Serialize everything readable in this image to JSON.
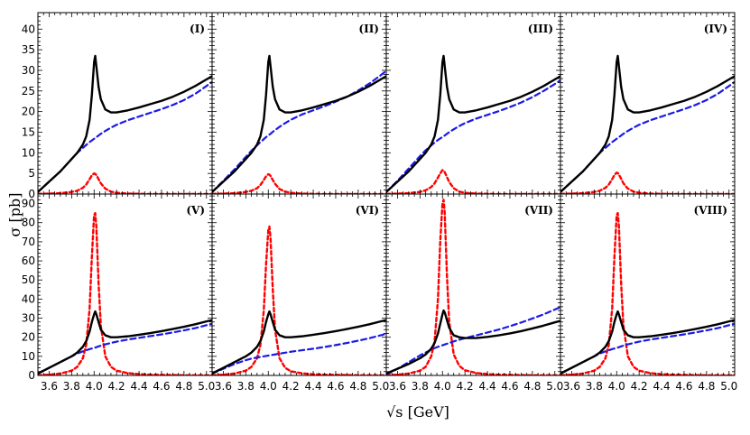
{
  "figure": {
    "ylabel": "σ   [pb]",
    "xlabel": "√s   [GeV]"
  },
  "chart_data": {
    "type": "line",
    "layout": "2 rows x 4 columns, shared axes",
    "x_range": [
      3.5,
      5.05
    ],
    "x_ticks": [
      3.6,
      3.8,
      4.0,
      4.2,
      4.4,
      4.6,
      4.8,
      5.0
    ],
    "x_tick_labels": [
      "3.6",
      "3.8",
      "4.0",
      "4.2",
      "4.4",
      "4.6",
      "4.8",
      "5.0"
    ],
    "rows": [
      {
        "ylim": [
          0,
          44
        ],
        "y_ticks": [
          0,
          5,
          10,
          15,
          20,
          25,
          30,
          35,
          40
        ],
        "y_tick_labels": [
          "0",
          "5",
          "10",
          "15",
          "20",
          "25",
          "30",
          "35",
          "40"
        ]
      },
      {
        "ylim": [
          0,
          95
        ],
        "y_ticks": [
          0,
          10,
          20,
          30,
          40,
          50,
          60,
          70,
          80,
          90
        ],
        "y_tick_labels": [
          "0",
          "10",
          "20",
          "30",
          "40",
          "50",
          "60",
          "70",
          "80",
          "90"
        ]
      }
    ],
    "x": [
      3.5,
      3.6,
      3.7,
      3.8,
      3.85,
      3.9,
      3.93,
      3.96,
      3.98,
      4.0,
      4.01,
      4.02,
      4.04,
      4.06,
      4.1,
      4.15,
      4.2,
      4.3,
      4.4,
      4.5,
      4.6,
      4.7,
      4.8,
      4.9,
      5.0,
      5.05
    ],
    "series_styles": {
      "total": {
        "color": "#000000",
        "dash": "none",
        "width": 2.4
      },
      "background": {
        "color": "#1a1ae6",
        "dash": "6,4",
        "width": 2.2
      },
      "resonance": {
        "color": "#ff0000",
        "dash": "4,3",
        "width": 2.4
      }
    },
    "panels": [
      {
        "label": "(I)",
        "row": 0,
        "series": [
          {
            "style": "total",
            "values": [
              0.5,
              3,
              5.5,
              8.5,
              10,
              12,
              14,
              18,
              24,
              32,
              33.5,
              31,
              26,
              23,
              20.5,
              19.8,
              19.8,
              20.3,
              21,
              21.8,
              22.6,
              23.6,
              24.8,
              26.2,
              27.8,
              28.6
            ]
          },
          {
            "style": "background",
            "values": [
              0.5,
              3,
              5.5,
              8.5,
              10,
              11.2,
              11.9,
              12.6,
              13,
              13.4,
              13.6,
              13.8,
              14.2,
              14.6,
              15.3,
              16.1,
              16.8,
              17.9,
              18.8,
              19.7,
              20.6,
              21.6,
              22.8,
              24.3,
              26.2,
              27.2
            ]
          },
          {
            "style": "resonance",
            "values": [
              0.05,
              0.1,
              0.2,
              0.5,
              0.8,
              1.5,
              2.3,
              3.6,
              4.5,
              5,
              4.9,
              4.6,
              3.6,
              2.6,
              1.3,
              0.6,
              0.3,
              0.1,
              0.05,
              0,
              0,
              0,
              0,
              0,
              0,
              0
            ]
          }
        ]
      },
      {
        "label": "(II)",
        "row": 0,
        "series": [
          {
            "style": "total",
            "values": [
              0.5,
              3,
              5.5,
              8.5,
              10,
              12,
              14,
              18,
              24,
              32,
              33.5,
              31,
              26,
              23,
              20.5,
              19.8,
              19.8,
              20.3,
              21,
              21.8,
              22.6,
              23.6,
              24.8,
              26.2,
              27.8,
              28.6
            ]
          },
          {
            "style": "background",
            "values": [
              0.5,
              3.2,
              6,
              9,
              10.5,
              11.8,
              12.6,
              13.3,
              13.8,
              14.2,
              14.4,
              14.6,
              15.1,
              15.5,
              16.3,
              17.2,
              18,
              19.3,
              20.3,
              21.3,
              22.4,
              23.6,
              25.1,
              26.8,
              28.8,
              29.9
            ]
          },
          {
            "style": "resonance",
            "values": [
              0.05,
              0.1,
              0.2,
              0.5,
              0.8,
              1.4,
              2.2,
              3.4,
              4.3,
              4.8,
              4.7,
              4.4,
              3.4,
              2.5,
              1.2,
              0.6,
              0.3,
              0.1,
              0.05,
              0,
              0,
              0,
              0,
              0,
              0,
              0
            ]
          }
        ]
      },
      {
        "label": "(III)",
        "row": 0,
        "series": [
          {
            "style": "total",
            "values": [
              0.5,
              3,
              5.5,
              8.5,
              10,
              12,
              14,
              18,
              24,
              32,
              33.5,
              31,
              26,
              23,
              20.5,
              19.8,
              19.8,
              20.3,
              21,
              21.8,
              22.6,
              23.6,
              24.8,
              26.2,
              27.8,
              28.6
            ]
          },
          {
            "style": "background",
            "values": [
              0.5,
              3.2,
              6.2,
              9.2,
              10.6,
              11.8,
              12.5,
              13.1,
              13.5,
              13.8,
              14,
              14.2,
              14.6,
              15,
              15.7,
              16.5,
              17.2,
              18.3,
              19.2,
              20.1,
              21.1,
              22.2,
              23.5,
              25,
              26.7,
              27.6
            ]
          },
          {
            "style": "resonance",
            "values": [
              0.05,
              0.1,
              0.2,
              0.5,
              0.9,
              1.7,
              2.6,
              4,
              5,
              5.8,
              5.7,
              5.3,
              4.1,
              2.9,
              1.4,
              0.6,
              0.3,
              0.1,
              0.05,
              0,
              0,
              0,
              0,
              0,
              0,
              0
            ]
          }
        ]
      },
      {
        "label": "(IV)",
        "row": 0,
        "series": [
          {
            "style": "total",
            "values": [
              0.5,
              3,
              5.5,
              8.5,
              10,
              12,
              14,
              18,
              24,
              32,
              33.5,
              31,
              26,
              23,
              20.5,
              19.8,
              19.8,
              20.3,
              21,
              21.8,
              22.6,
              23.6,
              24.8,
              26.2,
              27.8,
              28.6
            ]
          },
          {
            "style": "background",
            "values": [
              0.5,
              3,
              5.5,
              8.5,
              10,
              11.2,
              11.9,
              12.6,
              13,
              13.4,
              13.6,
              13.8,
              14.2,
              14.6,
              15.3,
              16.1,
              16.8,
              17.9,
              18.8,
              19.7,
              20.6,
              21.6,
              22.8,
              24.3,
              26.2,
              27.2
            ]
          },
          {
            "style": "resonance",
            "values": [
              0.05,
              0.1,
              0.2,
              0.5,
              0.8,
              1.5,
              2.3,
              3.6,
              4.6,
              5.2,
              5.1,
              4.7,
              3.7,
              2.6,
              1.3,
              0.6,
              0.3,
              0.1,
              0.05,
              0,
              0,
              0,
              0,
              0,
              0,
              0
            ]
          }
        ]
      },
      {
        "label": "(V)",
        "row": 1,
        "series": [
          {
            "style": "total",
            "values": [
              1,
              4,
              7,
              10,
              12,
              15,
              18,
              23,
              28,
              32,
              33.5,
              32,
              28,
              24,
              21,
              20,
              20,
              20.5,
              21.3,
              22.2,
              23.2,
              24.3,
              25.5,
              26.8,
              28.3,
              29
            ]
          },
          {
            "style": "background",
            "values": [
              1,
              4,
              7,
              10,
              11.5,
              12.6,
              13.2,
              13.8,
              14.1,
              14.4,
              14.6,
              14.8,
              15.2,
              15.6,
              16.3,
              17,
              17.7,
              18.8,
              19.7,
              20.6,
              21.5,
              22.5,
              23.6,
              24.8,
              26.3,
              27.1
            ]
          },
          {
            "style": "resonance",
            "values": [
              0.1,
              0.4,
              1,
              2.5,
              4.5,
              9,
              16,
              35,
              62,
              84,
              85,
              78,
              48,
              26,
              10,
              4.5,
              2.5,
              1.2,
              0.7,
              0.4,
              0.3,
              0.2,
              0.1,
              0.1,
              0.1,
              0.1
            ]
          }
        ]
      },
      {
        "label": "(VI)",
        "row": 1,
        "series": [
          {
            "style": "total",
            "values": [
              1,
              4,
              7,
              10,
              12,
              15,
              18,
              23,
              28,
              32,
              33.5,
              32,
              28,
              24,
              21,
              20,
              20,
              20.5,
              21.3,
              22.2,
              23.2,
              24.3,
              25.5,
              26.8,
              28.3,
              29
            ]
          },
          {
            "style": "background",
            "values": [
              1,
              3.5,
              6,
              8,
              8.8,
              9.4,
              9.7,
              10,
              10.2,
              10.4,
              10.5,
              10.6,
              10.8,
              11,
              11.4,
              11.9,
              12.4,
              13.2,
              14,
              14.9,
              15.9,
              17,
              18.2,
              19.5,
              21,
              21.8
            ]
          },
          {
            "style": "resonance",
            "values": [
              0.1,
              0.4,
              1,
              2.5,
              4.5,
              9,
              16,
              34,
              58,
              76,
              78,
              72,
              45,
              24,
              9,
              4,
              2.2,
              1.1,
              0.6,
              0.4,
              0.3,
              0.2,
              0.1,
              0.1,
              0.1,
              0.1
            ]
          }
        ]
      },
      {
        "label": "(VII)",
        "row": 1,
        "series": [
          {
            "style": "total",
            "values": [
              1,
              3.5,
              6,
              9,
              11,
              14,
              17,
              22,
              27,
              32,
              34,
              33,
              29,
              25,
              21,
              20,
              19.6,
              19.6,
              20.2,
              21,
              22,
              23.2,
              24.6,
              26.1,
              27.8,
              28.6
            ]
          },
          {
            "style": "background",
            "values": [
              0.5,
              3.5,
              7,
              10.5,
              12,
              13.5,
              14.3,
              15,
              15.4,
              15.8,
              16,
              16.2,
              16.6,
              17,
              17.8,
              18.7,
              19.5,
              21,
              22.5,
              24,
              25.8,
              27.7,
              29.8,
              32,
              34.5,
              35.8
            ]
          },
          {
            "style": "resonance",
            "values": [
              0.1,
              0.4,
              1,
              2.5,
              4.5,
              10,
              18,
              40,
              70,
              90,
              92,
              85,
              52,
              28,
              11,
              5,
              2.7,
              1.3,
              0.7,
              0.4,
              0.3,
              0.2,
              0.1,
              0.1,
              0.1,
              0.1
            ]
          }
        ]
      },
      {
        "label": "(VIII)",
        "row": 1,
        "series": [
          {
            "style": "total",
            "values": [
              1,
              4,
              7,
              10,
              12,
              15,
              18,
              23,
              28,
              32,
              33.5,
              32,
              28,
              24,
              21,
              20,
              20,
              20.5,
              21.3,
              22.2,
              23.2,
              24.3,
              25.5,
              26.8,
              28.3,
              29
            ]
          },
          {
            "style": "background",
            "values": [
              1,
              4,
              7,
              10,
              11.5,
              12.6,
              13.2,
              13.8,
              14.1,
              14.4,
              14.6,
              14.8,
              15.2,
              15.6,
              16.3,
              17,
              17.7,
              18.8,
              19.7,
              20.6,
              21.5,
              22.5,
              23.6,
              24.8,
              26.3,
              27.1
            ]
          },
          {
            "style": "resonance",
            "values": [
              0.1,
              0.4,
              1,
              2.5,
              4.5,
              9,
              16,
              35,
              62,
              84,
              85,
              78,
              48,
              26,
              10,
              4.5,
              2.5,
              1.2,
              0.7,
              0.4,
              0.3,
              0.2,
              0.1,
              0.1,
              0.1,
              0.1
            ]
          }
        ]
      }
    ]
  }
}
